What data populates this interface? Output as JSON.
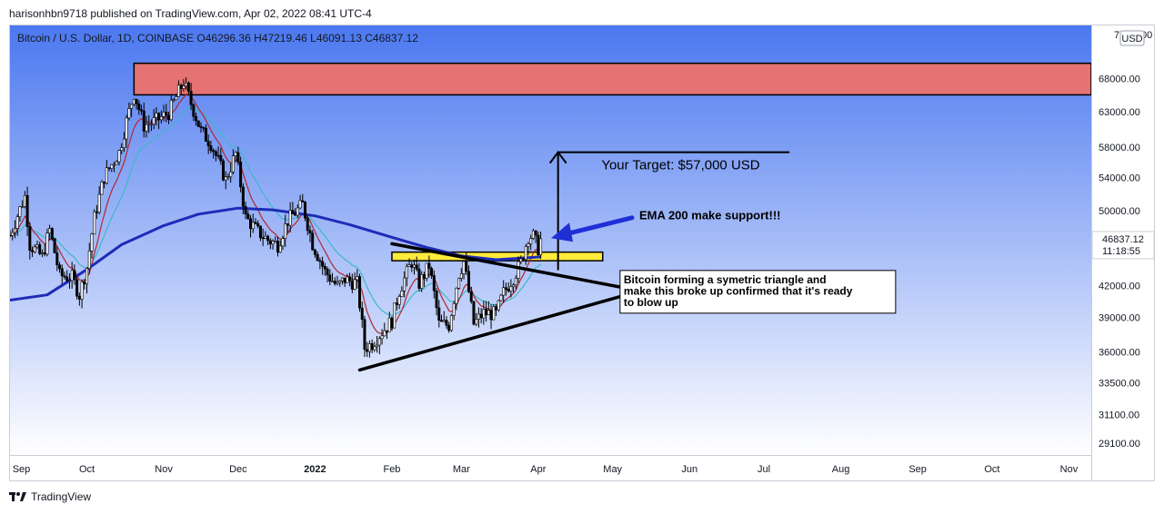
{
  "header": {
    "published_line": "harisonhbn9718 published on TradingView.com, Apr 02, 2022 08:41 UTC-4"
  },
  "branding": {
    "label": "TradingView"
  },
  "chart_data": {
    "type": "candlestick",
    "symbol_line": "Bitcoin / U.S. Dollar, 1D, COINBASE  O46296.36  H47219.46  L46091.13  C46837.12",
    "currency_badge": "USD",
    "axis_top_label": "76",
    "axis_top_label_suffix": "00",
    "y_scale": "log",
    "ylim": [
      28300,
      77000
    ],
    "y_ticks": [
      {
        "value": 68000,
        "label": "68000.00"
      },
      {
        "value": 63000,
        "label": "63000.00"
      },
      {
        "value": 58000,
        "label": "58000.00"
      },
      {
        "value": 54000,
        "label": "54000.00"
      },
      {
        "value": 50000,
        "label": "50000.00"
      },
      {
        "value": 42000,
        "label": "42000.00"
      },
      {
        "value": 39000,
        "label": "39000.00"
      },
      {
        "value": 36000,
        "label": "36000.00"
      },
      {
        "value": 33500,
        "label": "33500.00"
      },
      {
        "value": 31100,
        "label": "31100.00"
      },
      {
        "value": 29100,
        "label": "29100.00"
      }
    ],
    "x_ticks": [
      {
        "date": "2021-09-01",
        "label": "Sep",
        "bold": false
      },
      {
        "date": "2021-10-01",
        "label": "Oct",
        "bold": false
      },
      {
        "date": "2021-11-01",
        "label": "Nov",
        "bold": false
      },
      {
        "date": "2021-12-01",
        "label": "Dec",
        "bold": false
      },
      {
        "date": "2022-01-01",
        "label": "2022",
        "bold": true
      },
      {
        "date": "2022-02-01",
        "label": "Feb",
        "bold": false
      },
      {
        "date": "2022-03-01",
        "label": "Mar",
        "bold": false
      },
      {
        "date": "2022-04-01",
        "label": "Apr",
        "bold": false
      },
      {
        "date": "2022-05-01",
        "label": "May",
        "bold": false
      },
      {
        "date": "2022-06-01",
        "label": "Jun",
        "bold": false
      },
      {
        "date": "2022-07-01",
        "label": "Jul",
        "bold": false
      },
      {
        "date": "2022-08-01",
        "label": "Aug",
        "bold": false
      },
      {
        "date": "2022-09-01",
        "label": "Sep",
        "bold": false
      },
      {
        "date": "2022-10-01",
        "label": "Oct",
        "bold": false
      },
      {
        "date": "2022-11-01",
        "label": "Nov",
        "bold": false
      }
    ],
    "xlim": [
      "2021-08-31",
      "2022-11-10"
    ],
    "price_path": [
      [
        "2021-08-31",
        47200
      ],
      [
        "2021-09-06",
        51700
      ],
      [
        "2021-09-08",
        46200
      ],
      [
        "2021-09-13",
        44900
      ],
      [
        "2021-09-16",
        47800
      ],
      [
        "2021-09-20",
        43000
      ],
      [
        "2021-09-25",
        42800
      ],
      [
        "2021-09-28",
        41100
      ],
      [
        "2021-10-01",
        43800
      ],
      [
        "2021-10-04",
        49200
      ],
      [
        "2021-10-08",
        54100
      ],
      [
        "2021-10-14",
        57300
      ],
      [
        "2021-10-20",
        65800
      ],
      [
        "2021-10-24",
        61000
      ],
      [
        "2021-10-28",
        61500
      ],
      [
        "2021-11-03",
        62800
      ],
      [
        "2021-11-09",
        67500
      ],
      [
        "2021-11-12",
        64200
      ],
      [
        "2021-11-16",
        60200
      ],
      [
        "2021-11-20",
        58500
      ],
      [
        "2021-11-26",
        53700
      ],
      [
        "2021-11-30",
        57100
      ],
      [
        "2021-12-04",
        49200
      ],
      [
        "2021-12-09",
        47600
      ],
      [
        "2021-12-13",
        46700
      ],
      [
        "2021-12-17",
        46200
      ],
      [
        "2021-12-21",
        48900
      ],
      [
        "2021-12-27",
        50700
      ],
      [
        "2021-12-31",
        46300
      ],
      [
        "2022-01-05",
        43400
      ],
      [
        "2022-01-10",
        41900
      ],
      [
        "2022-01-13",
        42600
      ],
      [
        "2022-01-18",
        42200
      ],
      [
        "2022-01-21",
        36300
      ],
      [
        "2022-01-24",
        36700
      ],
      [
        "2022-01-28",
        37700
      ],
      [
        "2022-02-01",
        38700
      ],
      [
        "2022-02-04",
        41500
      ],
      [
        "2022-02-09",
        44400
      ],
      [
        "2022-02-12",
        42200
      ],
      [
        "2022-02-16",
        44000
      ],
      [
        "2022-02-20",
        38400
      ],
      [
        "2022-02-24",
        38300
      ],
      [
        "2022-02-28",
        43200
      ],
      [
        "2022-03-02",
        44400
      ],
      [
        "2022-03-06",
        38400
      ],
      [
        "2022-03-10",
        39400
      ],
      [
        "2022-03-15",
        39300
      ],
      [
        "2022-03-18",
        41300
      ],
      [
        "2022-03-22",
        42800
      ],
      [
        "2022-03-25",
        44300
      ],
      [
        "2022-03-28",
        47100
      ],
      [
        "2022-03-30",
        47100
      ],
      [
        "2022-04-01",
        45800
      ],
      [
        "2022-04-02",
        46837
      ]
    ],
    "ema_200_path": [
      [
        "2021-08-31",
        40600
      ],
      [
        "2021-09-15",
        41100
      ],
      [
        "2021-10-01",
        43600
      ],
      [
        "2021-10-15",
        46200
      ],
      [
        "2021-11-01",
        48300
      ],
      [
        "2021-11-15",
        49600
      ],
      [
        "2021-12-01",
        50300
      ],
      [
        "2021-12-15",
        50100
      ],
      [
        "2022-01-01",
        49400
      ],
      [
        "2022-01-15",
        48400
      ],
      [
        "2022-02-01",
        47000
      ],
      [
        "2022-02-15",
        45900
      ],
      [
        "2022-03-01",
        45000
      ],
      [
        "2022-03-15",
        44600
      ],
      [
        "2022-04-02",
        44900
      ]
    ],
    "zones": [
      {
        "name": "resistance",
        "from": "2021-10-20",
        "to": "2022-11-10",
        "low": 65500,
        "high": 70500,
        "color": "#e57373"
      },
      {
        "name": "support",
        "from": "2022-02-01",
        "to": "2022-04-27",
        "low": 44500,
        "high": 45400,
        "color": "#ffeb3b"
      }
    ],
    "trendlines": [
      {
        "name": "triangle-upper",
        "from": [
          "2022-02-01",
          46300
        ],
        "to": [
          "2022-05-14",
          41400
        ]
      },
      {
        "name": "triangle-lower",
        "from": [
          "2022-01-19",
          34500
        ],
        "to": [
          "2022-05-14",
          41600
        ]
      },
      {
        "name": "target-stem",
        "from": [
          "2022-04-09",
          43600
        ],
        "to": [
          "2022-04-09",
          57300
        ]
      },
      {
        "name": "target-line",
        "from": [
          "2022-04-09",
          57300
        ],
        "to": [
          "2022-07-11",
          57300
        ]
      }
    ],
    "annotations": {
      "target": "Your Target: $57,000 USD",
      "ema_note": "EMA 200 make support!!!",
      "triangle_note": [
        "Bitcoin forming a symetric triangle and",
        "make this broke up confirmed that it's ready",
        "to blow up"
      ]
    },
    "last_price": {
      "value": 46837.12,
      "label": "46837.12",
      "countdown": "11:18:55"
    },
    "colors": {
      "up": "#ffffff",
      "down": "#000000",
      "wick": "#000000",
      "ema_200": "#1e2bb8",
      "ema_fast": "#b0282f",
      "ema_slow": "#3fb8c8",
      "arrow": "#1f2fd6",
      "bg_top": "#4b78f0",
      "bg_bottom": "#ffffff"
    }
  }
}
